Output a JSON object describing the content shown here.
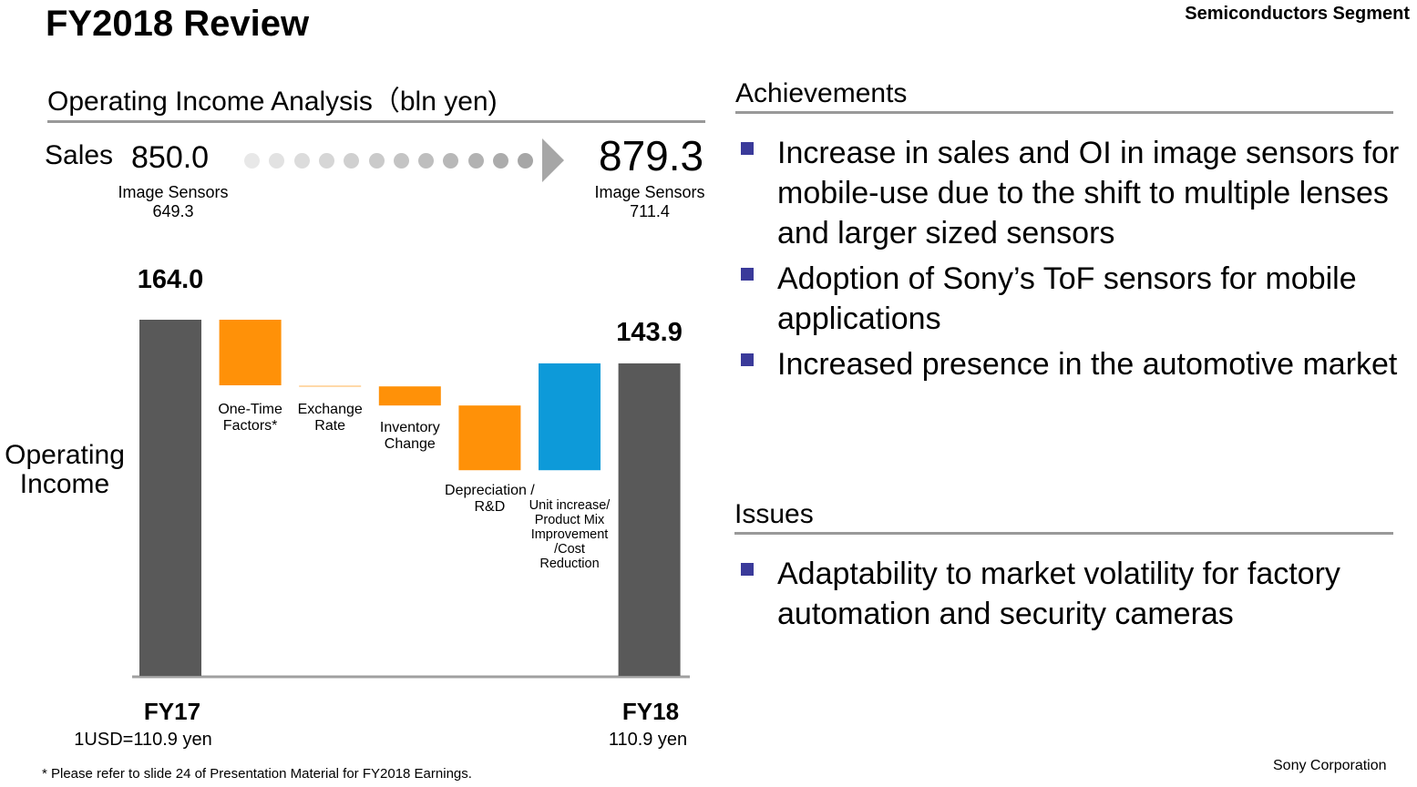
{
  "header": {
    "title": "FY2018 Review",
    "segment": "Semiconductors Segment"
  },
  "left": {
    "section_title": "Operating Income Analysis（bln yen)",
    "sales": {
      "label": "Sales",
      "fy17": "850.0",
      "fy18": "879.3",
      "fy17_sub_label": "Image Sensors",
      "fy17_sub_value": "649.3",
      "fy18_sub_label": "Image Sensors",
      "fy18_sub_value": "711.4"
    },
    "oi_label": "Operating Income",
    "fy17_label": "FY17",
    "fy18_label": "FY18",
    "fy17_rate": "1USD=110.9 yen",
    "fy18_rate": "110.9 yen"
  },
  "chart_data": {
    "type": "waterfall",
    "categories": [
      "FY17",
      "One-Time Factors*",
      "Exchange Rate",
      "Inventory Change",
      "Depreciation / R&D",
      "Unit increase/ Product Mix Improvement /Cost Reduction",
      "FY18"
    ],
    "values": [
      164.0,
      -30.2,
      -0.5,
      -8.8,
      -29.8,
      49.2,
      143.9
    ],
    "kinds": [
      "total",
      "delta",
      "delta",
      "delta",
      "delta",
      "delta",
      "total"
    ],
    "data_labels": [
      "164.0",
      "",
      "",
      "",
      "",
      "",
      "143.9"
    ],
    "ylim": [
      0,
      170
    ],
    "colors": {
      "total": "#595959",
      "decrease": "#ff9108",
      "increase": "#0d9ad9"
    },
    "grid": false
  },
  "achievements": {
    "title": "Achievements",
    "items": [
      "Increase in sales and OI in image sensors for mobile-use due to the shift to multiple lenses and larger sized sensors",
      "Adoption of Sony’s ToF sensors for mobile applications",
      "Increased presence in the automotive market"
    ]
  },
  "issues": {
    "title": "Issues",
    "items": [
      "Adaptability to market volatility for factory automation and security cameras"
    ]
  },
  "footer": {
    "footnote": "* Please refer to slide 24 of Presentation Material for FY2018 Earnings.",
    "corporation": "Sony Corporation"
  },
  "colors": {
    "bullet": "#3a3a9a",
    "rule": "#999999"
  }
}
